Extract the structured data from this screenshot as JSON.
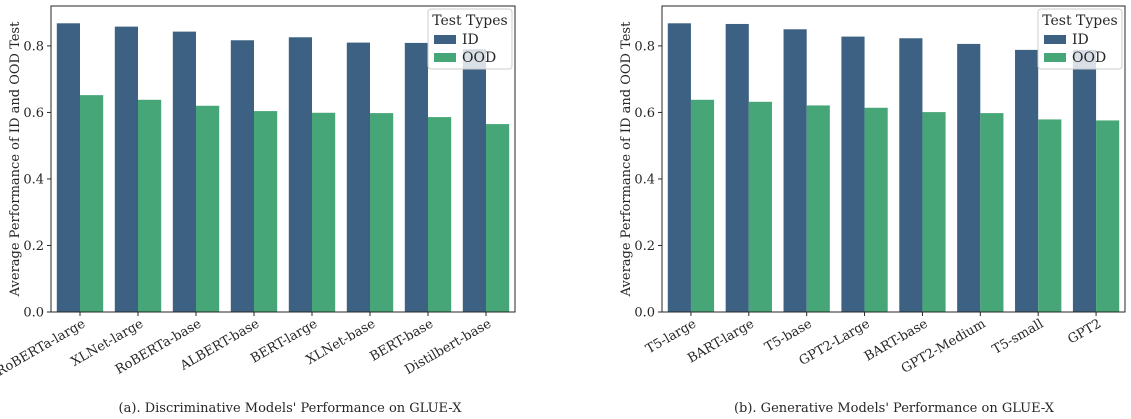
{
  "chart_data": [
    {
      "type": "bar",
      "caption": "(a). Discriminative Models' Performance on GLUE-X",
      "ylabel": "Average Performance of ID and OOD Test",
      "xlabel": "",
      "ylim": [
        0,
        0.92
      ],
      "yticks": [
        "0.0",
        "0.2",
        "0.4",
        "0.6",
        "0.8"
      ],
      "categories": [
        "RoBERTa-large",
        "XLNet-large",
        "RoBERTa-base",
        "ALBERT-base",
        "BERT-large",
        "XLNet-base",
        "BERT-base",
        "Distilbert-base"
      ],
      "series": [
        {
          "name": "ID",
          "color": "#3c6182",
          "values": [
            0.868,
            0.858,
            0.843,
            0.817,
            0.826,
            0.81,
            0.809,
            0.79
          ]
        },
        {
          "name": "OOD",
          "color": "#47a677",
          "values": [
            0.652,
            0.638,
            0.62,
            0.604,
            0.599,
            0.598,
            0.586,
            0.565
          ]
        }
      ],
      "legend": {
        "title": "Test Types",
        "position": "top-right"
      },
      "grid": false
    },
    {
      "type": "bar",
      "caption": "(b). Generative Models' Performance on GLUE-X",
      "ylabel": "Average Performance of ID and OOD Test",
      "xlabel": "",
      "ylim": [
        0,
        0.92
      ],
      "yticks": [
        "0.0",
        "0.2",
        "0.4",
        "0.6",
        "0.8"
      ],
      "categories": [
        "T5-large",
        "BART-large",
        "T5-base",
        "GPT2-Large",
        "BART-base",
        "GPT2-Medium",
        "T5-small",
        "GPT2"
      ],
      "series": [
        {
          "name": "ID",
          "color": "#3c6182",
          "values": [
            0.868,
            0.866,
            0.85,
            0.828,
            0.823,
            0.806,
            0.788,
            0.788
          ]
        },
        {
          "name": "OOD",
          "color": "#47a677",
          "values": [
            0.638,
            0.632,
            0.621,
            0.614,
            0.601,
            0.598,
            0.579,
            0.576
          ]
        }
      ],
      "legend": {
        "title": "Test Types",
        "position": "top-right"
      },
      "grid": false
    }
  ]
}
